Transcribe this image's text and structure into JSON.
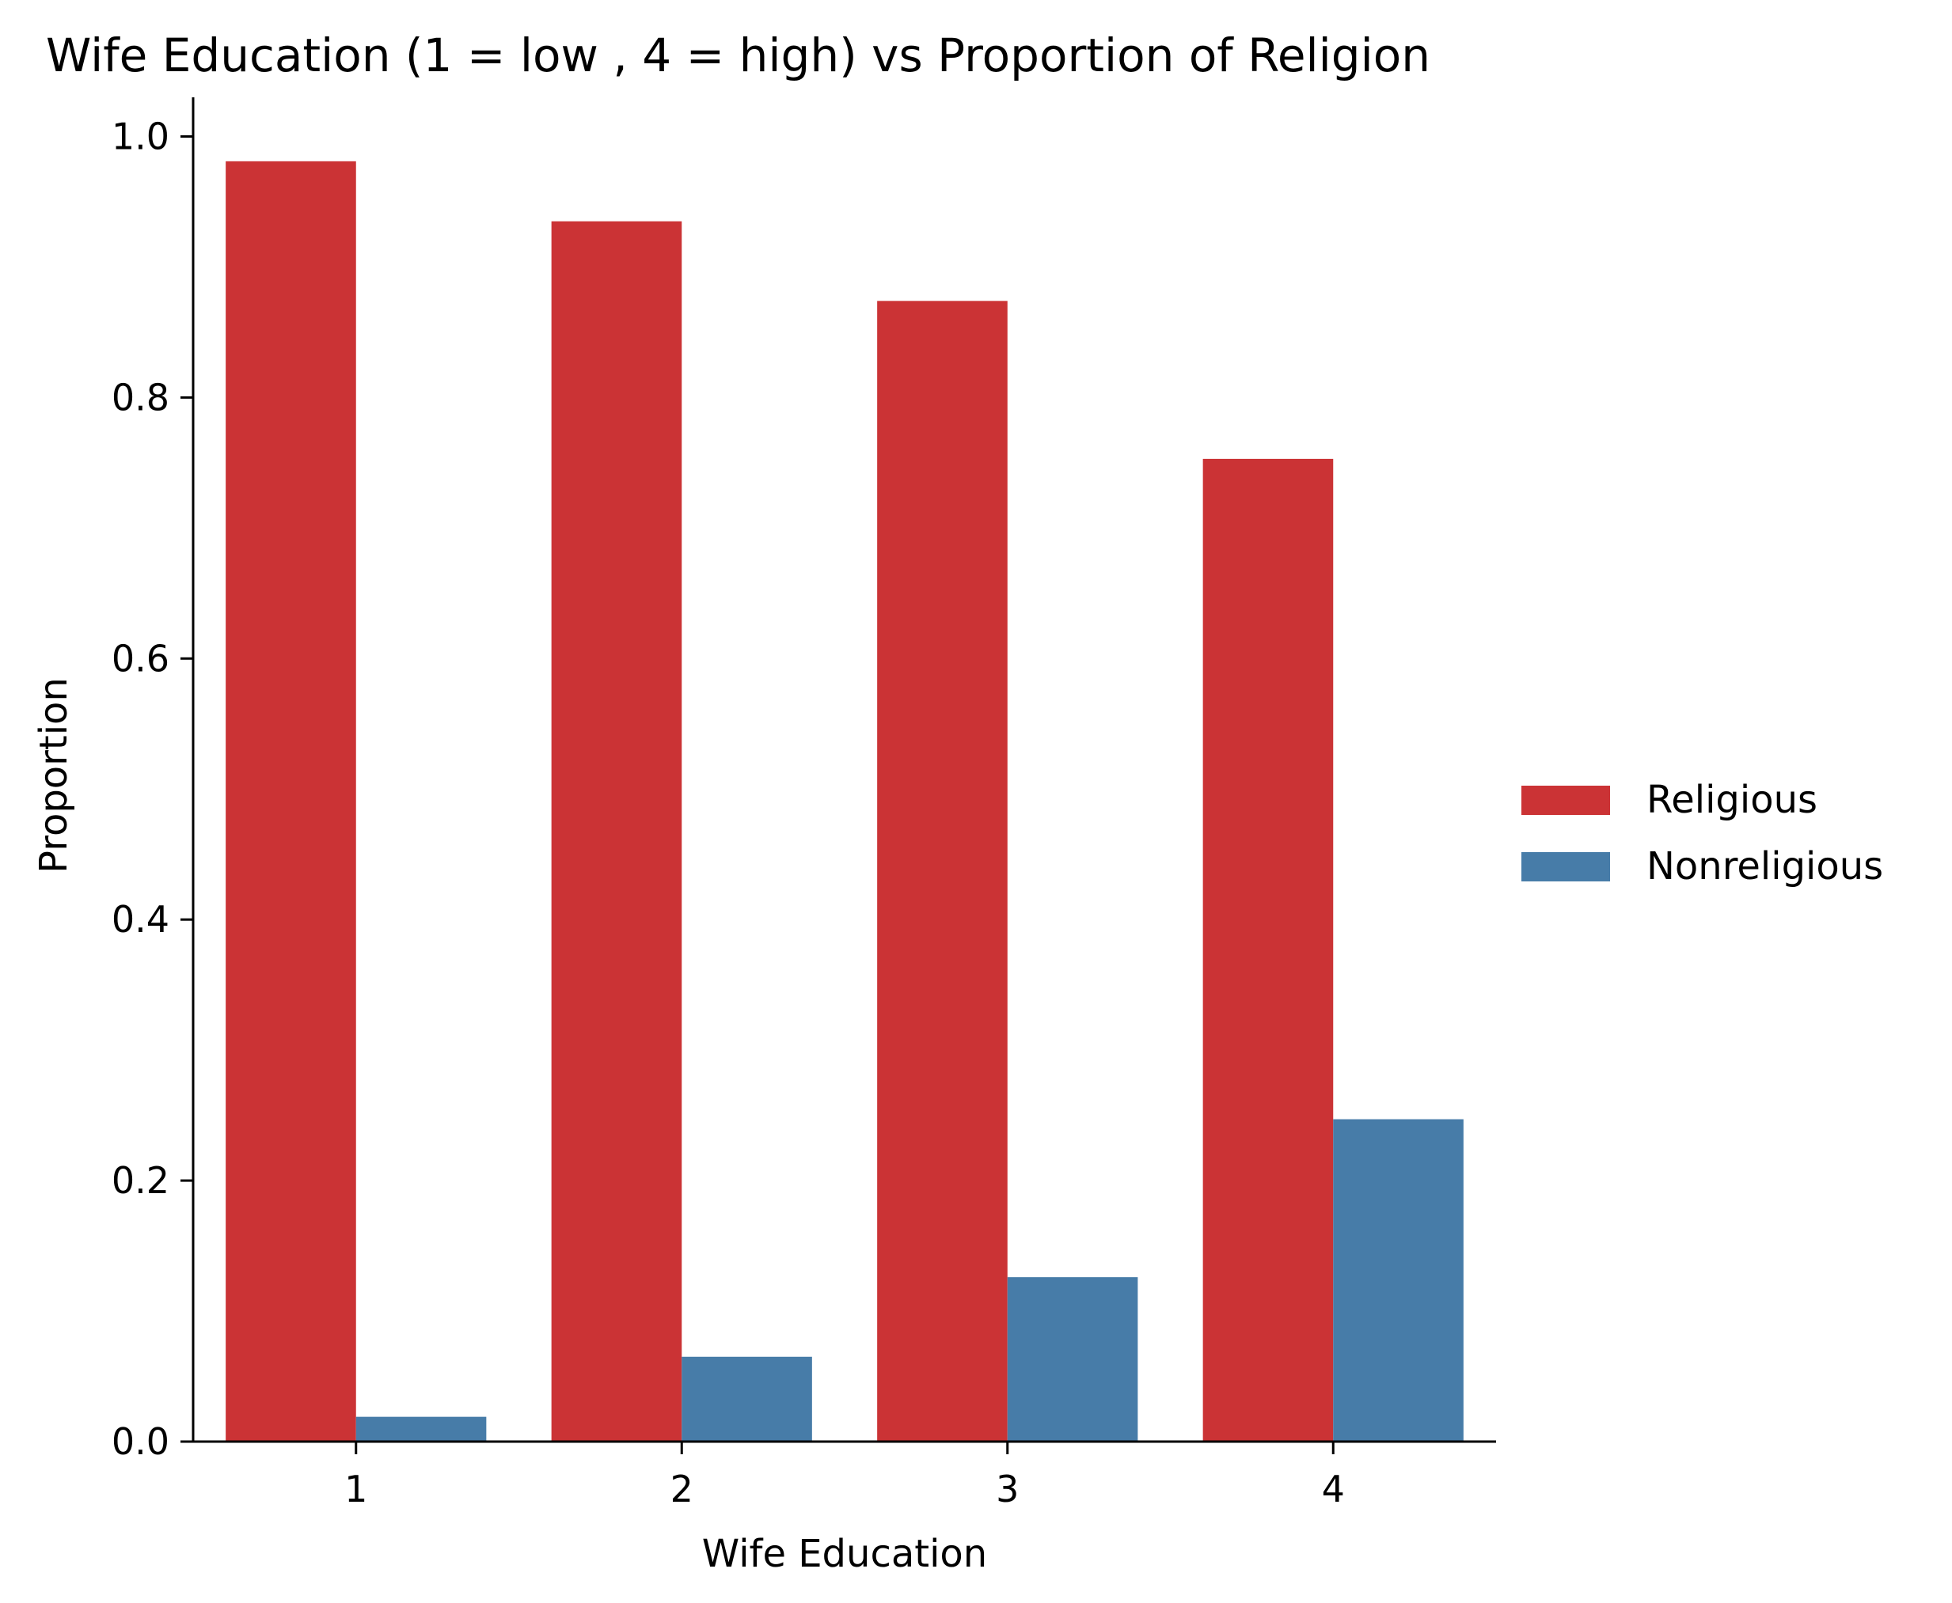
{
  "chart_data": {
    "type": "bar",
    "title": "Wife Education (1 = low , 4 = high) vs Proportion of Religion",
    "xlabel": "Wife Education",
    "ylabel": "Proportion",
    "categories": [
      "1",
      "2",
      "3",
      "4"
    ],
    "series": [
      {
        "name": "Religious",
        "color": "#cb3335",
        "values": [
          0.981,
          0.935,
          0.874,
          0.753
        ]
      },
      {
        "name": "Nonreligious",
        "color": "#477ca8",
        "values": [
          0.019,
          0.065,
          0.126,
          0.247
        ]
      }
    ],
    "ylim": [
      0,
      1.03
    ],
    "yticks": [
      "0.0",
      "0.2",
      "0.4",
      "0.6",
      "0.8",
      "1.0"
    ],
    "grid": false,
    "legend_position": "right"
  }
}
